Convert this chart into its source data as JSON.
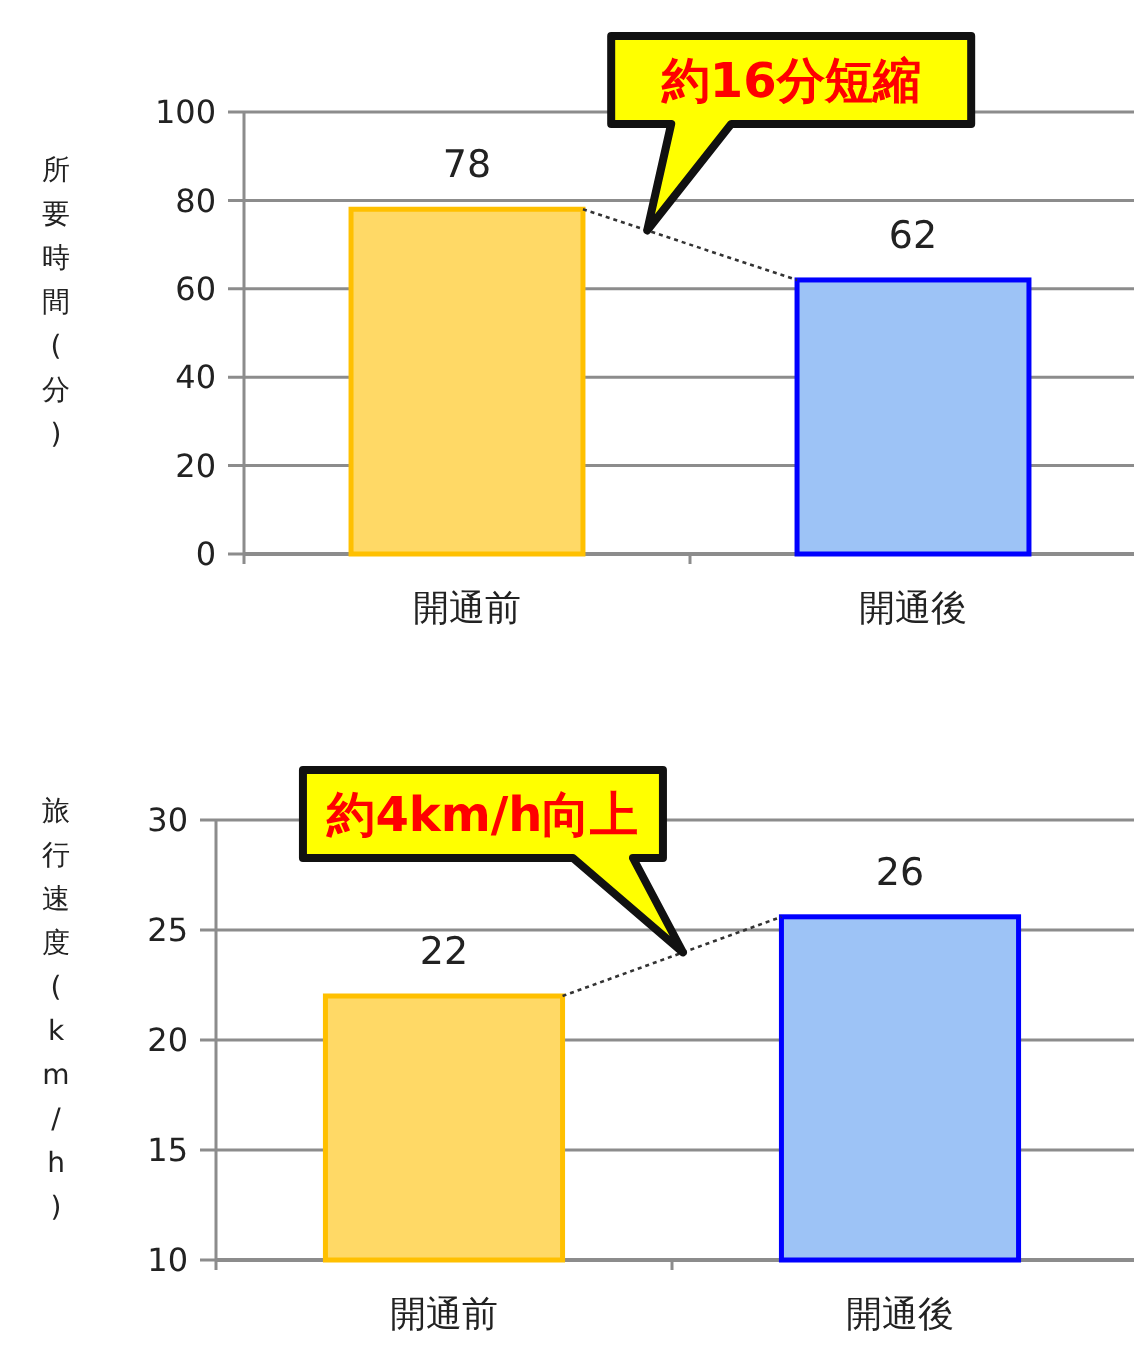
{
  "chart_data": [
    {
      "type": "bar",
      "ylabel": "所要時間(分)",
      "categories": [
        "開通前",
        "開通後"
      ],
      "values": [
        78,
        62
      ],
      "colors": [
        "#ffd966",
        "#9dc3f6"
      ],
      "ylim": [
        0,
        100
      ],
      "yticks": [
        0,
        20,
        40,
        60,
        80,
        100
      ],
      "grid": "y",
      "data_labels": true,
      "annotations": [
        "約16分短縮"
      ]
    },
    {
      "type": "bar",
      "ylabel": "旅行速度(km/h)",
      "categories": [
        "開通前",
        "開通後"
      ],
      "values": [
        22,
        25.6
      ],
      "value_labels": [
        "22",
        "26"
      ],
      "colors": [
        "#ffd966",
        "#9dc3f6"
      ],
      "ylim": [
        10,
        30
      ],
      "yticks": [
        10,
        15,
        20,
        25,
        30
      ],
      "grid": "y",
      "annotations": [
        "約4km/h向上"
      ]
    }
  ]
}
